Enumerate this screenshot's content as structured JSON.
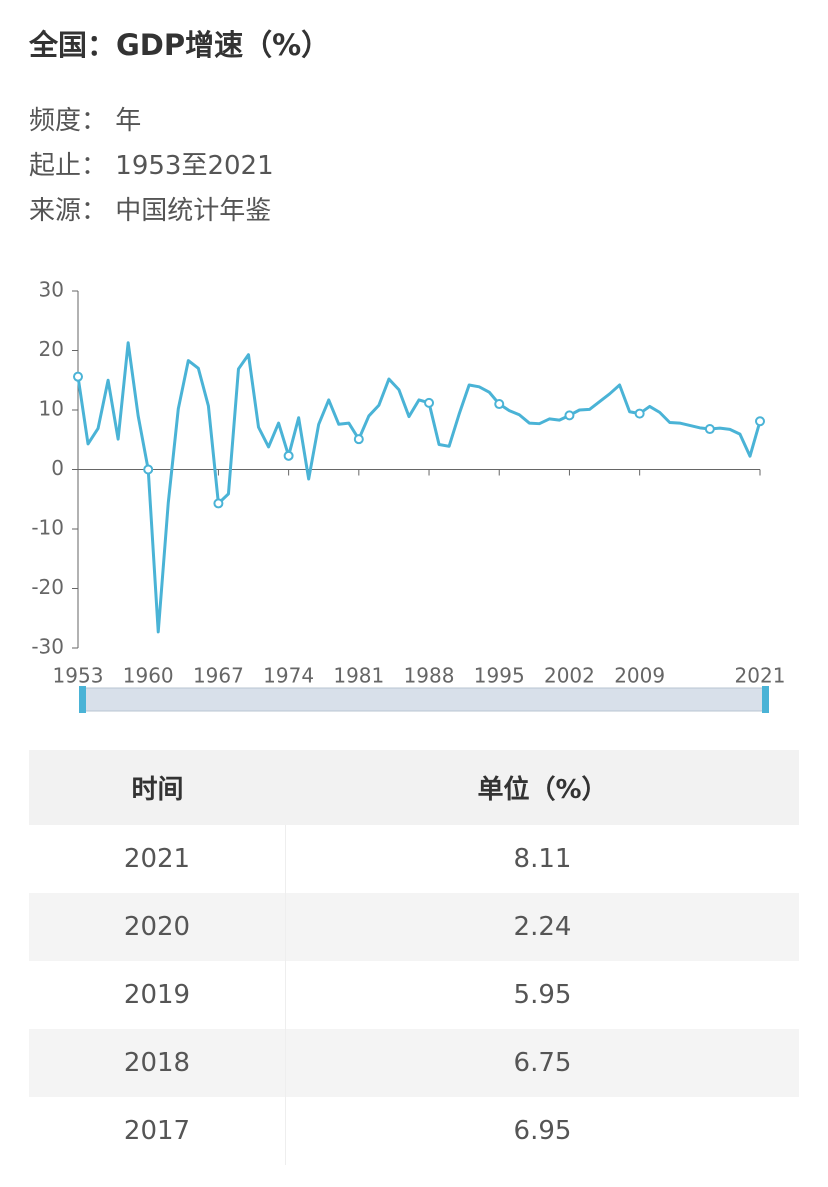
{
  "header": {
    "title": "全国：GDP增速（%）"
  },
  "meta": [
    {
      "label": "频度：",
      "value": "年"
    },
    {
      "label": "起止：",
      "value": "1953至2021"
    },
    {
      "label": "来源：",
      "value": "中国统计年鉴"
    }
  ],
  "chart_data": {
    "type": "line",
    "x": [
      1953,
      1954,
      1955,
      1956,
      1957,
      1958,
      1959,
      1960,
      1961,
      1962,
      1963,
      1964,
      1965,
      1966,
      1967,
      1968,
      1969,
      1970,
      1971,
      1972,
      1973,
      1974,
      1975,
      1976,
      1977,
      1978,
      1979,
      1980,
      1981,
      1982,
      1983,
      1984,
      1985,
      1986,
      1987,
      1988,
      1989,
      1990,
      1991,
      1992,
      1993,
      1994,
      1995,
      1996,
      1997,
      1998,
      1999,
      2000,
      2001,
      2002,
      2003,
      2004,
      2005,
      2006,
      2007,
      2008,
      2009,
      2010,
      2011,
      2012,
      2013,
      2014,
      2015,
      2016,
      2017,
      2018,
      2019,
      2020,
      2021
    ],
    "series": [
      {
        "name": "GDP增速",
        "color": "#4ab3d6",
        "values": [
          15.6,
          4.3,
          6.9,
          15.0,
          5.1,
          21.3,
          9.0,
          0.0,
          -27.3,
          -5.6,
          10.2,
          18.3,
          17.0,
          10.7,
          -5.7,
          -4.1,
          16.9,
          19.3,
          7.1,
          3.8,
          7.8,
          2.3,
          8.7,
          -1.6,
          7.6,
          11.7,
          7.6,
          7.8,
          5.1,
          9.0,
          10.8,
          15.2,
          13.4,
          8.9,
          11.7,
          11.2,
          4.2,
          3.9,
          9.3,
          14.2,
          13.9,
          13.0,
          11.0,
          9.9,
          9.2,
          7.8,
          7.7,
          8.5,
          8.3,
          9.1,
          10.0,
          10.1,
          11.4,
          12.7,
          14.2,
          9.7,
          9.4,
          10.6,
          9.6,
          7.9,
          7.8,
          7.4,
          7.0,
          6.8,
          6.95,
          6.75,
          5.95,
          2.24,
          8.11
        ]
      }
    ],
    "xlim": [
      1953,
      2021
    ],
    "xticks": [
      1953,
      1960,
      1967,
      1974,
      1981,
      1988,
      1995,
      2002,
      2009,
      2021
    ],
    "ylim": [
      -30,
      30
    ],
    "yticks": [
      -30,
      -20,
      -10,
      0,
      10,
      20,
      30
    ],
    "grid": false
  },
  "table": {
    "headers": [
      "时间",
      "单位（%）"
    ],
    "rows": [
      [
        "2021",
        "8.11"
      ],
      [
        "2020",
        "2.24"
      ],
      [
        "2019",
        "5.95"
      ],
      [
        "2018",
        "6.75"
      ],
      [
        "2017",
        "6.95"
      ]
    ]
  }
}
